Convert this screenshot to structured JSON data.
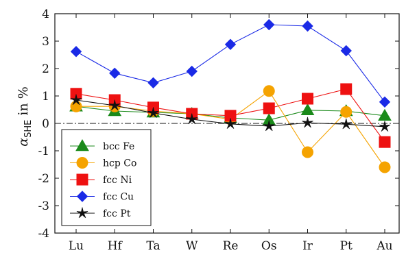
{
  "chart_data": {
    "type": "line",
    "categories": [
      "Lu",
      "Hf",
      "Ta",
      "W",
      "Re",
      "Os",
      "Ir",
      "Pt",
      "Au"
    ],
    "ylabel": {
      "symbol": "α",
      "subscript": "SHE",
      "rest": " in %"
    },
    "ylim": [
      -4,
      4
    ],
    "yticks": [
      "-4",
      "-3",
      "-2",
      "-1",
      "0",
      "1",
      "2",
      "3",
      "4"
    ],
    "legend_position": "bottom-left",
    "series": [
      {
        "name": "bcc Fe",
        "marker": "triangle",
        "color": "#1a8a1a",
        "values": [
          0.62,
          0.45,
          0.4,
          0.35,
          0.2,
          0.12,
          0.48,
          0.45,
          0.28
        ]
      },
      {
        "name": "hcp Co",
        "marker": "circle",
        "color": "#f5a300",
        "values": [
          0.62,
          0.62,
          0.45,
          0.35,
          0.15,
          1.18,
          -1.05,
          0.42,
          -1.6
        ]
      },
      {
        "name": "fcc Ni",
        "marker": "square",
        "color": "#ee1111",
        "values": [
          1.08,
          0.85,
          0.58,
          0.35,
          0.28,
          0.55,
          0.9,
          1.25,
          -0.68
        ]
      },
      {
        "name": "fcc Cu",
        "marker": "diamond",
        "color": "#1a2ae6",
        "values": [
          2.62,
          1.83,
          1.48,
          1.9,
          2.88,
          3.6,
          3.55,
          2.65,
          0.78
        ]
      },
      {
        "name": "fcc Pt",
        "marker": "star",
        "color": "#111111",
        "values": [
          0.85,
          0.65,
          0.38,
          0.15,
          -0.02,
          -0.1,
          0.02,
          -0.03,
          -0.12
        ]
      }
    ]
  }
}
